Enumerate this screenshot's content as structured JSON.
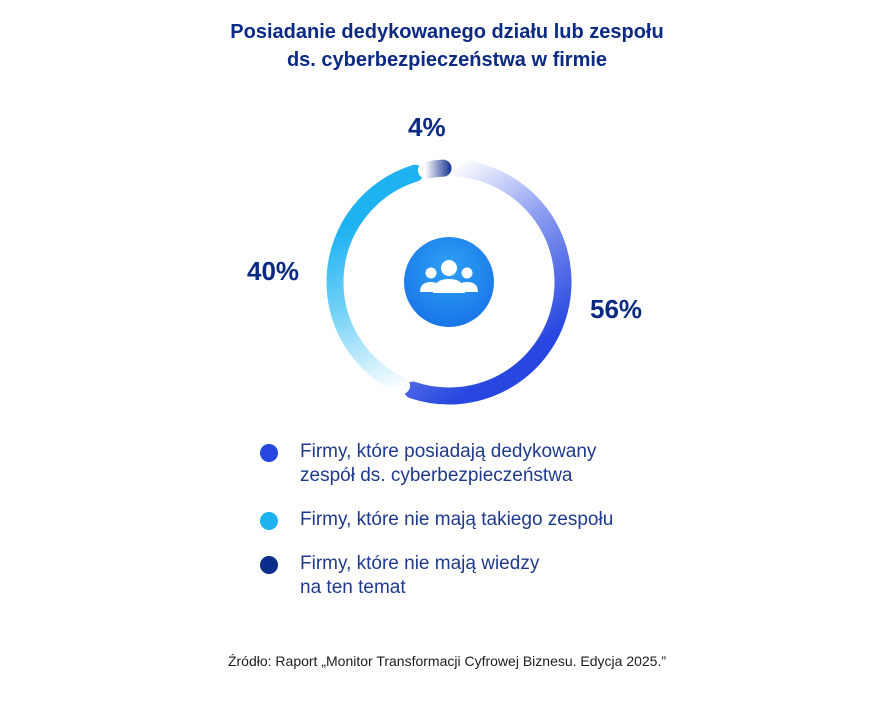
{
  "header": {
    "title_line1": "Posiadanie dedykowanego działu lub zespołu",
    "title_line2": "ds. cyberbezpieczeństwa w firmie"
  },
  "chart_data": {
    "type": "donut",
    "title": "Posiadanie dedykowanego działu lub zespołu ds. cyberbezpieczeństwa w firmie",
    "center_icon": "people-group-icon",
    "slices": [
      {
        "name": "Firmy, które posiadają dedykowany zespół ds. cyberbezpieczeństwa",
        "value": 56,
        "label": "56%",
        "color": "#2747e0"
      },
      {
        "name": "Firmy, które nie mają takiego zespołu",
        "value": 40,
        "label": "40%",
        "color": "#1fb2f2"
      },
      {
        "name": "Firmy, które nie mają wiedzy na ten temat",
        "value": 4,
        "label": "4%",
        "color": "#0c2d8c"
      }
    ]
  },
  "legend": {
    "items": [
      {
        "line1": "Firmy, które posiadają dedykowany",
        "line2": "zespół ds. cyberbezpieczeństwa",
        "color": "#2747e0"
      },
      {
        "line1": "Firmy, które nie mają takiego zespołu",
        "line2": "",
        "color": "#1fb2f2"
      },
      {
        "line1": "Firmy, które nie mają wiedzy",
        "line2": "na ten temat",
        "color": "#0c2d8c"
      }
    ]
  },
  "footer": {
    "source": "Źródło: Raport „Monitor Transformacji Cyfrowej Biznesu. Edycja 2025.”"
  }
}
